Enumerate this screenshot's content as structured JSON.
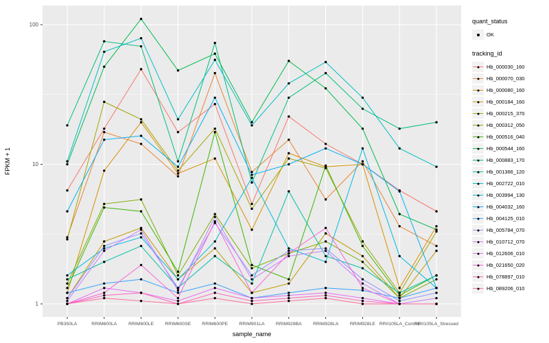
{
  "figure": {
    "background": "#ffffff",
    "panel_background": "#EBEBEB",
    "gridline_color": "#ffffff"
  },
  "legend": {
    "quant_status_title": "quant_status",
    "quant_status_items": [
      {
        "label": "OK",
        "shape": "point",
        "color": "#000000"
      }
    ],
    "tracking_id_title": "tracking_id"
  },
  "chart_data": {
    "type": "line",
    "title": "",
    "xlabel": "sample_name",
    "ylabel": "FPKM + 1",
    "y_scale": "log10",
    "ylim": [
      0.8,
      137
    ],
    "y_ticks": [
      {
        "value": 1,
        "label": "1"
      },
      {
        "value": 10,
        "label": "10"
      },
      {
        "value": 100,
        "label": "100"
      }
    ],
    "y_minor_ticks": [
      3.1623,
      31.623
    ],
    "grid": true,
    "legend_position": "right",
    "point_color": "#000000",
    "categories": [
      "PB350LA",
      "RRIM600LA",
      "RRIM600LE",
      "RRIM600SE",
      "RRIM600PE",
      "RRIM901LA",
      "RRIM928BA",
      "RRIM928LA",
      "RRIM928LE",
      "RRII105LA_Control",
      "RRII105LA_Stressed"
    ],
    "series": [
      {
        "name": "Hb_000030_160",
        "color": "#F8766D",
        "values": [
          6.5,
          18,
          48,
          17,
          27,
          5.2,
          22,
          14,
          10,
          6.5,
          4.6
        ]
      },
      {
        "name": "Hb_000070_030",
        "color": "#EA8331",
        "values": [
          3.0,
          17,
          14,
          8.2,
          45,
          8.8,
          15,
          5.6,
          10.5,
          3.6,
          2.6
        ]
      },
      {
        "name": "Hb_000080_160",
        "color": "#D89000",
        "values": [
          1.2,
          9,
          20,
          8.6,
          11,
          3.4,
          12,
          9.6,
          10,
          1.3,
          3.6
        ]
      },
      {
        "name": "Hb_000184_160",
        "color": "#C09B00",
        "values": [
          1.1,
          2.8,
          3.5,
          1.5,
          2.5,
          1.2,
          1.4,
          3.2,
          2.2,
          1.1,
          2.4
        ]
      },
      {
        "name": "Hb_000215_370",
        "color": "#A3A500",
        "values": [
          2.9,
          28,
          21,
          9,
          18,
          4.8,
          11,
          9.4,
          2.8,
          1.2,
          3.3
        ]
      },
      {
        "name": "Hb_000312_050",
        "color": "#7CAE00",
        "values": [
          1.4,
          5.2,
          5.6,
          1.6,
          4.4,
          1.8,
          2.3,
          2.8,
          2.0,
          1.1,
          1.5
        ]
      },
      {
        "name": "Hb_000516_040",
        "color": "#39B600",
        "values": [
          1.3,
          4.9,
          4.6,
          1.7,
          17,
          1.9,
          1.5,
          9.8,
          2.6,
          1.15,
          1.6
        ]
      },
      {
        "name": "Hb_000544_160",
        "color": "#00BB4E",
        "values": [
          10,
          50,
          110,
          47,
          62,
          20,
          55,
          35,
          18,
          4.4,
          3.4
        ]
      },
      {
        "name": "Hb_000883_170",
        "color": "#00BF7D",
        "values": [
          19,
          76,
          70,
          10.5,
          74,
          7.4,
          30,
          45,
          25,
          18,
          20
        ]
      },
      {
        "name": "Hb_001366_120",
        "color": "#00C1A3",
        "values": [
          1.5,
          2.0,
          2.6,
          1.3,
          2.2,
          1.4,
          6.4,
          2.2,
          1.8,
          1.2,
          1.6
        ]
      },
      {
        "name": "Hb_002722_010",
        "color": "#00BFC4",
        "values": [
          10.5,
          64,
          80,
          21,
          56,
          19,
          38,
          54,
          30,
          13,
          9.6
        ]
      },
      {
        "name": "Hb_003994_130",
        "color": "#00BAE0",
        "values": [
          1.6,
          2.5,
          3.0,
          1.5,
          2.8,
          8.0,
          2.5,
          2.0,
          13,
          2.2,
          1.3
        ]
      },
      {
        "name": "Hb_004032_160",
        "color": "#00B0F6",
        "values": [
          4.6,
          15,
          16,
          9.6,
          30,
          8.4,
          10,
          13,
          10,
          6.4,
          1.3
        ]
      },
      {
        "name": "Hb_004125_010",
        "color": "#35A2FF",
        "values": [
          1.2,
          1.4,
          1.5,
          1.2,
          1.4,
          1.1,
          1.2,
          1.3,
          1.25,
          1.1,
          1.3
        ]
      },
      {
        "name": "Hb_005784_070",
        "color": "#9590FF",
        "values": [
          1.1,
          2.6,
          3.2,
          1.3,
          3.8,
          1.6,
          2.4,
          2.5,
          1.5,
          1.05,
          1.2
        ]
      },
      {
        "name": "Hb_010712_070",
        "color": "#C77CFF",
        "values": [
          1.05,
          2.4,
          3.4,
          1.25,
          4.2,
          1.5,
          2.2,
          2.4,
          1.4,
          1.0,
          1.1
        ]
      },
      {
        "name": "Hb_012606_010",
        "color": "#E76BF3",
        "values": [
          1.0,
          1.3,
          1.2,
          1.05,
          1.3,
          1.1,
          1.15,
          1.2,
          1.1,
          1.0,
          1.0
        ]
      },
      {
        "name": "Hb_021650_020",
        "color": "#FA62DB",
        "values": [
          1.0,
          1.2,
          1.9,
          1.1,
          3.9,
          1.2,
          2.3,
          3.5,
          1.3,
          1.0,
          1.0
        ]
      },
      {
        "name": "Hb_078897_010",
        "color": "#FF62BC",
        "values": [
          1.0,
          1.15,
          1.2,
          1.0,
          1.2,
          1.05,
          1.1,
          1.15,
          1.05,
          1.0,
          1.0
        ]
      },
      {
        "name": "Hb_089206_010",
        "color": "#FF6A98",
        "values": [
          1.0,
          1.1,
          1.05,
          1.0,
          1.1,
          1.0,
          1.05,
          1.1,
          1.0,
          1.0,
          1.0
        ]
      }
    ]
  }
}
